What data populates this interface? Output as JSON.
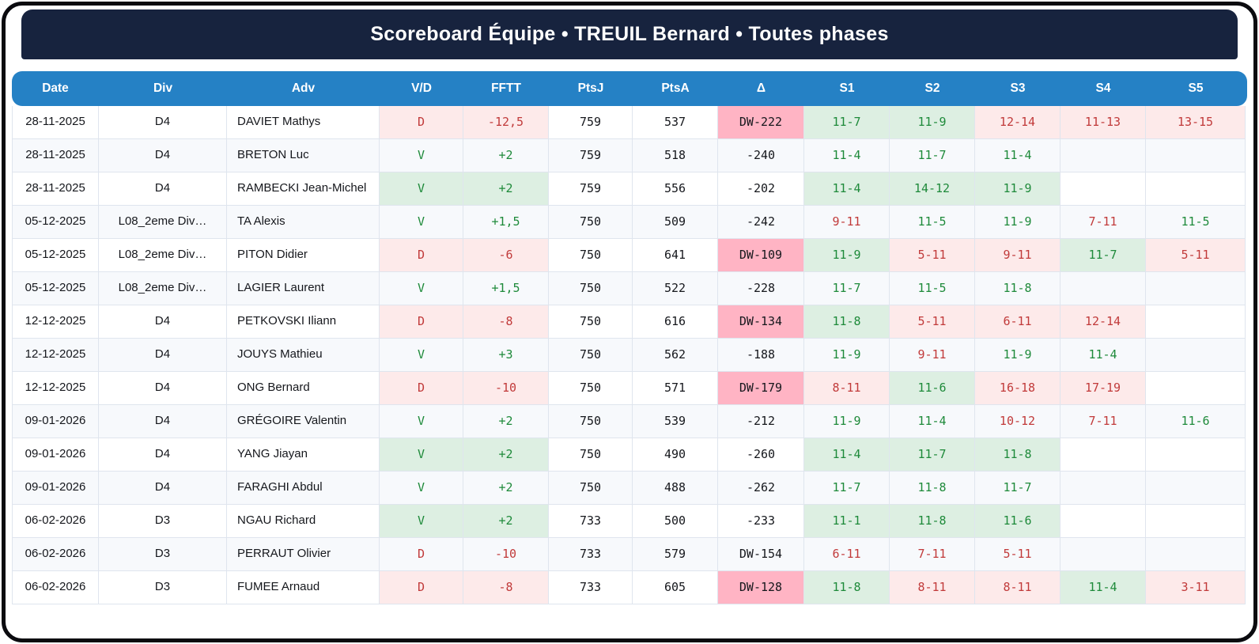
{
  "header": {
    "title": "Scoreboard Équipe • TREUIL Bernard • Toutes phases"
  },
  "colors": {
    "navy": "#17233e",
    "header_blue": "#2581c5",
    "win_text": "#1e8a3a",
    "win_bg": "#ddefe2",
    "loss_text": "#c13a3a",
    "loss_bg": "#fdeaea",
    "dw_bg": "#ffb4c4",
    "stripe": "#f7f9fc",
    "grid": "#dfe5ee"
  },
  "chart_data": {
    "type": "table",
    "title": "Scoreboard Équipe • TREUIL Bernard • Toutes phases",
    "columns": [
      "Date",
      "Div",
      "Adv",
      "V/D",
      "FFTT",
      "PtsJ",
      "PtsA",
      "Δ",
      "S1",
      "S2",
      "S3",
      "S4",
      "S5"
    ],
    "rows": [
      {
        "date": "28-11-2025",
        "div": "D4",
        "adv": "DAVIET Mathys",
        "vd": "D",
        "fftt": "-12,5",
        "ptsj": "759",
        "ptsa": "537",
        "delta": "DW-222",
        "sets": [
          "11-7",
          "11-9",
          "12-14",
          "11-13",
          "13-15"
        ]
      },
      {
        "date": "28-11-2025",
        "div": "D4",
        "adv": "BRETON Luc",
        "vd": "V",
        "fftt": "+2",
        "ptsj": "759",
        "ptsa": "518",
        "delta": "-240",
        "sets": [
          "11-4",
          "11-7",
          "11-4",
          "",
          ""
        ]
      },
      {
        "date": "28-11-2025",
        "div": "D4",
        "adv": "RAMBECKI Jean-Michel",
        "vd": "V",
        "fftt": "+2",
        "ptsj": "759",
        "ptsa": "556",
        "delta": "-202",
        "sets": [
          "11-4",
          "14-12",
          "11-9",
          "",
          ""
        ]
      },
      {
        "date": "05-12-2025",
        "div": "L08_2eme Div…",
        "adv": "TA Alexis",
        "vd": "V",
        "fftt": "+1,5",
        "ptsj": "750",
        "ptsa": "509",
        "delta": "-242",
        "sets": [
          "9-11",
          "11-5",
          "11-9",
          "7-11",
          "11-5"
        ]
      },
      {
        "date": "05-12-2025",
        "div": "L08_2eme Div…",
        "adv": "PITON Didier",
        "vd": "D",
        "fftt": "-6",
        "ptsj": "750",
        "ptsa": "641",
        "delta": "DW-109",
        "sets": [
          "11-9",
          "5-11",
          "9-11",
          "11-7",
          "5-11"
        ]
      },
      {
        "date": "05-12-2025",
        "div": "L08_2eme Div…",
        "adv": "LAGIER Laurent",
        "vd": "V",
        "fftt": "+1,5",
        "ptsj": "750",
        "ptsa": "522",
        "delta": "-228",
        "sets": [
          "11-7",
          "11-5",
          "11-8",
          "",
          ""
        ]
      },
      {
        "date": "12-12-2025",
        "div": "D4",
        "adv": "PETKOVSKI Iliann",
        "vd": "D",
        "fftt": "-8",
        "ptsj": "750",
        "ptsa": "616",
        "delta": "DW-134",
        "sets": [
          "11-8",
          "5-11",
          "6-11",
          "12-14",
          ""
        ]
      },
      {
        "date": "12-12-2025",
        "div": "D4",
        "adv": "JOUYS Mathieu",
        "vd": "V",
        "fftt": "+3",
        "ptsj": "750",
        "ptsa": "562",
        "delta": "-188",
        "sets": [
          "11-9",
          "9-11",
          "11-9",
          "11-4",
          ""
        ]
      },
      {
        "date": "12-12-2025",
        "div": "D4",
        "adv": "ONG Bernard",
        "vd": "D",
        "fftt": "-10",
        "ptsj": "750",
        "ptsa": "571",
        "delta": "DW-179",
        "sets": [
          "8-11",
          "11-6",
          "16-18",
          "17-19",
          ""
        ]
      },
      {
        "date": "09-01-2026",
        "div": "D4",
        "adv": "GRÉGOIRE Valentin",
        "vd": "V",
        "fftt": "+2",
        "ptsj": "750",
        "ptsa": "539",
        "delta": "-212",
        "sets": [
          "11-9",
          "11-4",
          "10-12",
          "7-11",
          "11-6"
        ]
      },
      {
        "date": "09-01-2026",
        "div": "D4",
        "adv": "YANG Jiayan",
        "vd": "V",
        "fftt": "+2",
        "ptsj": "750",
        "ptsa": "490",
        "delta": "-260",
        "sets": [
          "11-4",
          "11-7",
          "11-8",
          "",
          ""
        ]
      },
      {
        "date": "09-01-2026",
        "div": "D4",
        "adv": "FARAGHI Abdul",
        "vd": "V",
        "fftt": "+2",
        "ptsj": "750",
        "ptsa": "488",
        "delta": "-262",
        "sets": [
          "11-7",
          "11-8",
          "11-7",
          "",
          ""
        ]
      },
      {
        "date": "06-02-2026",
        "div": "D3",
        "adv": "NGAU Richard",
        "vd": "V",
        "fftt": "+2",
        "ptsj": "733",
        "ptsa": "500",
        "delta": "-233",
        "sets": [
          "11-1",
          "11-8",
          "11-6",
          "",
          ""
        ]
      },
      {
        "date": "06-02-2026",
        "div": "D3",
        "adv": "PERRAUT Olivier",
        "vd": "D",
        "fftt": "-10",
        "ptsj": "733",
        "ptsa": "579",
        "delta": "DW-154",
        "sets": [
          "6-11",
          "7-11",
          "5-11",
          "",
          ""
        ]
      },
      {
        "date": "06-02-2026",
        "div": "D3",
        "adv": "FUMEE Arnaud",
        "vd": "D",
        "fftt": "-8",
        "ptsj": "733",
        "ptsa": "605",
        "delta": "DW-128",
        "sets": [
          "11-8",
          "8-11",
          "8-11",
          "11-4",
          "3-11"
        ]
      }
    ]
  }
}
